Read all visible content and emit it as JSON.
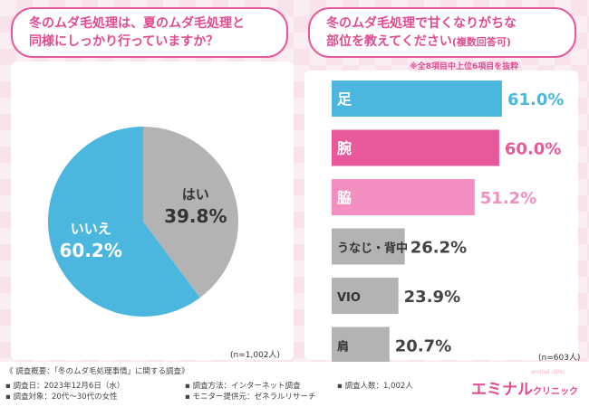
{
  "left": {
    "question_line1": "冬のムダ毛処理は、夏のムダ毛処理と",
    "question_line2": "同様にしっかり行っていますか？",
    "n_label": "(n=1,002人)"
  },
  "right": {
    "question_line1": "冬のムダ毛処理で甘くなりがちな",
    "question_line2": "部位を教えてください",
    "question_sub": "(複数回答可)",
    "note": "※全8項目中上位6項目を抜粋",
    "n_label": "(n=603人)"
  },
  "chart_data": [
    {
      "type": "pie",
      "title": "冬のムダ毛処理は、夏のムダ毛処理と同様にしっかり行っていますか？",
      "categories": [
        "はい",
        "いいえ"
      ],
      "values": [
        39.8,
        60.2
      ],
      "value_labels": [
        "39.8%",
        "60.2%"
      ],
      "colors": [
        "#b3b3b3",
        "#4cb7de"
      ]
    },
    {
      "type": "bar",
      "orientation": "horizontal",
      "title": "冬のムダ毛処理で甘くなりがちな部位を教えてください(複数回答可)",
      "categories": [
        "足",
        "腕",
        "脇",
        "うなじ・背中",
        "VIO",
        "肩"
      ],
      "values": [
        61.0,
        60.0,
        51.2,
        26.2,
        23.9,
        20.7
      ],
      "value_labels": [
        "61.0%",
        "60.0%",
        "51.2%",
        "26.2%",
        "23.9%",
        "20.7%"
      ],
      "colors": [
        "#4cb7de",
        "#e8599b",
        "#f28ec0",
        "#b3b3b3",
        "#b3b3b3",
        "#b3b3b3"
      ],
      "label_colors": [
        "#4cb7de",
        "#e8599b",
        "#f28ec0",
        "#444444",
        "#444444",
        "#444444"
      ],
      "xlim": [
        0,
        70
      ]
    }
  ],
  "footer": {
    "overview": "《 調査概要：「冬のムダ毛処理事情」に関する調査》",
    "date": "▪ 調査日：2023年12月6日（水）",
    "method": "▪ 調査方法：インターネット調査",
    "count": "▪ 調査人数：1,002人",
    "target": "▪ 調査対象：20代〜30代の女性",
    "provider": "▪ モニター提供元：ゼネラルリサーチ"
  },
  "brand": {
    "name": "エミナル",
    "suffix": "クリニック",
    "tagline": "eminal clinic"
  }
}
